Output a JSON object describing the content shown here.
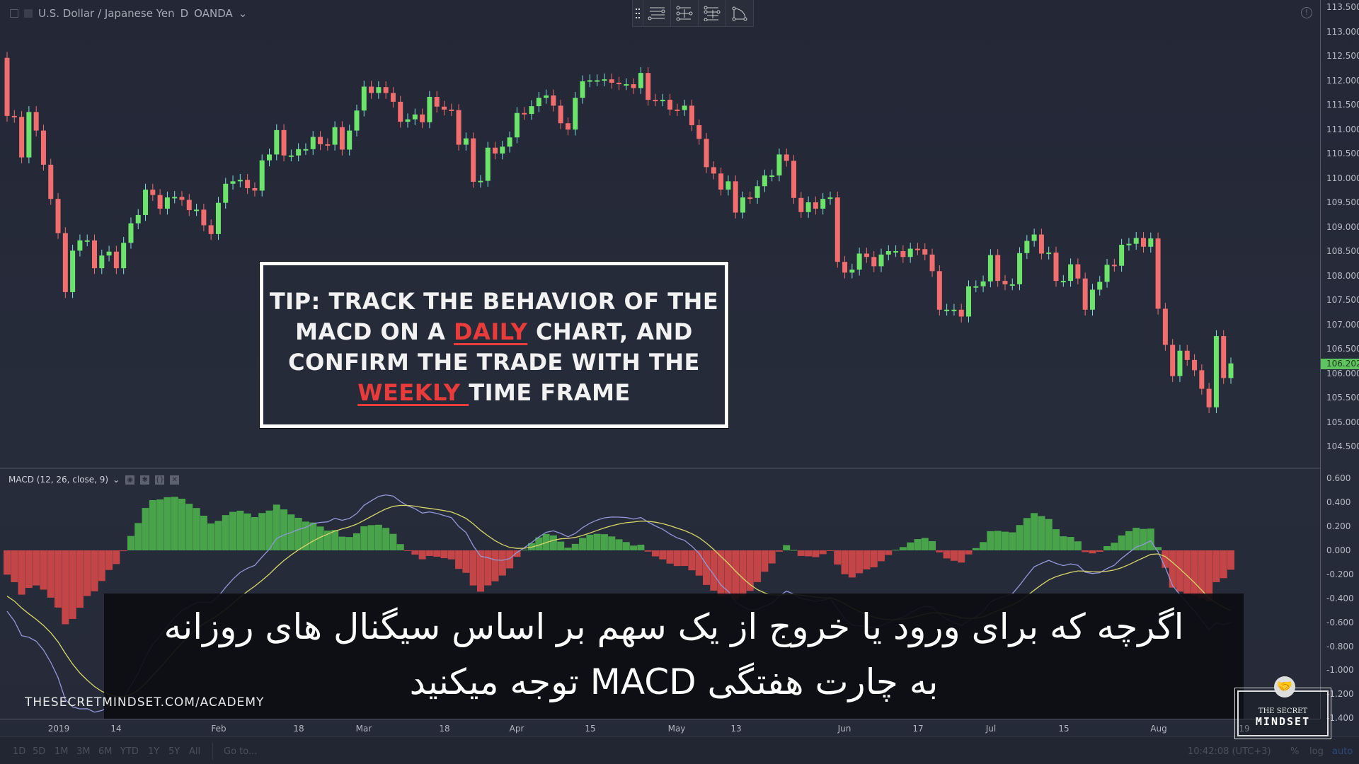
{
  "header": {
    "symbol": "U.S. Dollar / Japanese Yen",
    "interval": "D",
    "source": "OANDA"
  },
  "toolbar": {
    "icons": [
      "drag-grip-icon",
      "parallel-lines-icon",
      "fib-retracement-icon",
      "fib-extension-icon",
      "arc-icon"
    ]
  },
  "price_axis": {
    "ticks": [
      "113.500",
      "113.000",
      "112.500",
      "112.000",
      "111.500",
      "111.000",
      "110.500",
      "110.000",
      "109.500",
      "109.000",
      "108.500",
      "108.000",
      "107.500",
      "107.000",
      "106.500",
      "106.000",
      "105.500",
      "105.000",
      "104.500"
    ],
    "last_price": "106.202"
  },
  "macd": {
    "legend": "MACD (12, 26, close, 9)",
    "ticks": [
      "0.600",
      "0.400",
      "0.200",
      "0.000",
      "-0.200",
      "-0.400",
      "-0.600",
      "-0.800",
      "-1.000",
      "-1.200",
      "-1.400"
    ],
    "buttons": [
      "eye-icon",
      "gear-icon",
      "braces-icon",
      "close-icon"
    ]
  },
  "time_axis": {
    "labels": [
      "2019",
      "14",
      "Feb",
      "18",
      "Mar",
      "18",
      "Apr",
      "15",
      "May",
      "13",
      "Jun",
      "17",
      "Jul",
      "15",
      "Aug",
      "19"
    ]
  },
  "bottom_bar": {
    "ranges": [
      "1D",
      "5D",
      "1M",
      "3M",
      "6M",
      "YTD",
      "1Y",
      "5Y",
      "All"
    ],
    "goto": "Go to...",
    "clock": "10:42:08 (UTC+3)",
    "percent": "%",
    "log": "log",
    "auto": "auto"
  },
  "tip": {
    "line1": "TIP: TRACK THE BEHAVIOR OF THE",
    "line2_a": "MACD ON A ",
    "line2_hl": "DAILY",
    "line2_b": " CHART, AND",
    "line3": "CONFIRM THE TRADE WITH THE",
    "line4_hl": "WEEKLY ",
    "line4_b": "TIME FRAME"
  },
  "subtitle": {
    "line1": "اگرچه که برای ورود یا خروج از یک سهم بر اساس سیگنال های روزانه",
    "line2": "به چارت هفتگی MACD توجه میکنید"
  },
  "watermark": "THESECRETMINDSET.COM/ACADEMY",
  "logo": {
    "line1": "THE SECRET",
    "line2": "MINDSET"
  },
  "colors": {
    "up": "#6ce36b",
    "down": "#f26d6d",
    "hist_up": "#4fb84f",
    "hist_down": "#e04a4a",
    "macd_line": "#9298d8",
    "signal_line": "#d8d66a",
    "accent": "#ea3b3b"
  },
  "chart_data": {
    "type": "candlestick",
    "first_open": 112.46,
    "closes": [
      111.27,
      111.25,
      110.42,
      111.35,
      110.97,
      110.27,
      109.57,
      108.87,
      107.66,
      108.51,
      108.72,
      108.72,
      108.15,
      108.41,
      108.49,
      108.15,
      108.67,
      109.07,
      109.24,
      109.76,
      109.65,
      109.37,
      109.6,
      109.61,
      109.55,
      109.34,
      109.35,
      109.03,
      108.85,
      109.49,
      109.88,
      109.93,
      109.96,
      109.79,
      109.74,
      110.36,
      110.48,
      110.98,
      110.46,
      110.46,
      110.59,
      110.59,
      110.84,
      110.69,
      110.68,
      111.04,
      110.58,
      110.97,
      111.38,
      111.87,
      111.74,
      111.86,
      111.74,
      111.56,
      111.15,
      111.2,
      111.3,
      111.14,
      111.66,
      111.46,
      111.4,
      111.39,
      110.68,
      110.81,
      109.92,
      109.94,
      110.62,
      110.5,
      110.64,
      110.83,
      111.33,
      111.31,
      111.47,
      111.64,
      111.69,
      111.48,
      111.12,
      110.99,
      111.64,
      111.98,
      112.0,
      112.0,
      112.02,
      111.95,
      111.92,
      111.92,
      111.84,
      112.15,
      111.6,
      111.59,
      111.6,
      111.4,
      111.39,
      111.48,
      111.08,
      110.8,
      110.22,
      110.09,
      109.76,
      109.93,
      109.29,
      109.6,
      109.59,
      109.83,
      110.05,
      110.05,
      110.48,
      110.35,
      109.59,
      109.3,
      109.5,
      109.37,
      109.57,
      109.6,
      108.28,
      108.06,
      108.12,
      108.45,
      108.38,
      108.19,
      108.43,
      108.5,
      108.5,
      108.38,
      108.55,
      108.54,
      108.43,
      108.09,
      107.3,
      107.3,
      107.3,
      107.16,
      107.78,
      107.78,
      107.88,
      108.42,
      107.89,
      107.82,
      107.82,
      108.46,
      108.71,
      108.84,
      108.45,
      108.47,
      107.89,
      107.89,
      108.23,
      107.94,
      107.3,
      107.71,
      107.87,
      108.22,
      108.2,
      108.63,
      108.65,
      108.77,
      108.59,
      108.76,
      107.32,
      106.58,
      105.94,
      106.46,
      106.27,
      106.06,
      105.68,
      105.3,
      106.76,
      105.9,
      106.2
    ],
    "ylim": [
      104.5,
      113.5
    ],
    "indicator": {
      "name": "MACD",
      "params": [
        12,
        26,
        9
      ],
      "ylim": [
        -1.4,
        0.6
      ]
    }
  }
}
